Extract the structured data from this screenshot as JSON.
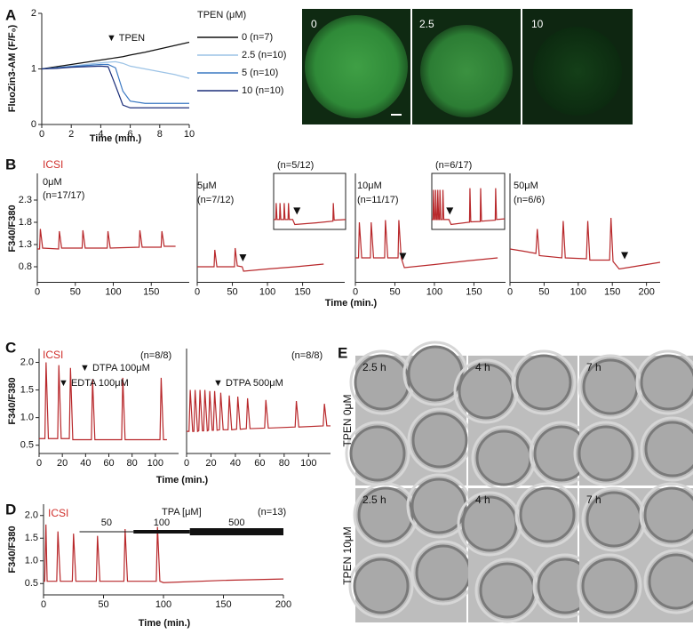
{
  "panel_letters": [
    "A",
    "B",
    "C",
    "D",
    "E"
  ],
  "panel_a_images": {
    "labels": [
      "0",
      "2.5",
      "10"
    ]
  },
  "panel_e": {
    "rows": [
      {
        "label": "TPEN 0μM",
        "times": [
          "2.5 h",
          "4 h",
          "7 h"
        ]
      },
      {
        "label": "TPEN 10μM",
        "times": [
          "2.5 h",
          "4 h",
          "7 h"
        ]
      }
    ]
  },
  "chart_data": [
    {
      "type": "line",
      "ylabel": "FluoZin3-AM (F/F₀)",
      "xlabel": "Time (min.)",
      "annotations": [
        "▼ TPEN"
      ],
      "legend_title": "TPEN (μM)",
      "x": [
        0,
        1,
        2,
        3,
        4,
        4.5,
        5,
        5.5,
        6,
        7,
        8,
        9,
        10
      ],
      "series": [
        {
          "name": "0 (n=7)",
          "color": "#111111",
          "values": [
            1.0,
            1.04,
            1.08,
            1.12,
            1.16,
            1.18,
            1.2,
            1.22,
            1.25,
            1.3,
            1.36,
            1.42,
            1.48
          ]
        },
        {
          "name": "2.5 (n=10)",
          "color": "#9cc3e6",
          "values": [
            1.0,
            1.02,
            1.05,
            1.08,
            1.11,
            1.12,
            1.13,
            1.1,
            1.05,
            1.0,
            0.95,
            0.9,
            0.83
          ]
        },
        {
          "name": "5 (n=10)",
          "color": "#3a78c2",
          "values": [
            1.0,
            1.02,
            1.04,
            1.06,
            1.08,
            1.08,
            1.02,
            0.6,
            0.42,
            0.38,
            0.38,
            0.38,
            0.38
          ]
        },
        {
          "name": "10 (n=10)",
          "color": "#1c2f7a",
          "values": [
            1.0,
            1.01,
            1.03,
            1.04,
            1.05,
            1.04,
            0.7,
            0.35,
            0.3,
            0.3,
            0.3,
            0.3,
            0.3
          ]
        }
      ],
      "xlim": [
        0,
        10
      ],
      "xticks": [
        0,
        2,
        4,
        6,
        8,
        10
      ],
      "ylim": [
        0,
        2
      ],
      "yticks": [
        0,
        1,
        2
      ]
    },
    {
      "type": "line",
      "label": "ICSI",
      "label_color": "#d0312d",
      "title": "0μM",
      "annotations": [
        "(n=17/17)"
      ],
      "ylabel": "F340/F380",
      "color": "#b8282b",
      "x": [
        0,
        3,
        4,
        7,
        28,
        29,
        32,
        59,
        60,
        63,
        92,
        93,
        96,
        134,
        135,
        138,
        163,
        164,
        167,
        182
      ],
      "values": [
        1.2,
        1.2,
        1.65,
        1.22,
        1.2,
        1.6,
        1.22,
        1.22,
        1.62,
        1.22,
        1.22,
        1.6,
        1.22,
        1.24,
        1.62,
        1.24,
        1.24,
        1.6,
        1.26,
        1.26
      ],
      "xlim": [
        0,
        200
      ],
      "xticks": [
        0,
        50,
        100,
        150
      ],
      "ylim": [
        0.45,
        2.9
      ],
      "yticks": [
        0.8,
        1.3,
        1.8,
        2.3
      ]
    },
    {
      "type": "line",
      "title": "5μM",
      "annotations": [
        "(n=7/12)"
      ],
      "xlabel": "Time (min.)",
      "color": "#b8282b",
      "x": [
        0,
        24,
        25,
        28,
        53,
        54,
        57,
        64,
        66,
        100,
        140,
        180
      ],
      "values": [
        0.8,
        0.8,
        1.18,
        0.8,
        0.8,
        1.22,
        0.82,
        0.8,
        0.7,
        0.75,
        0.8,
        0.86
      ],
      "markers": [
        {
          "x": 65,
          "y": 0.92
        }
      ],
      "xlim": [
        0,
        210
      ],
      "xticks": [
        0,
        50,
        100,
        150
      ],
      "ylim": [
        0.45,
        2.9
      ]
    },
    {
      "type": "line",
      "title": "10μM",
      "annotations": [
        "(n=11/17)"
      ],
      "color": "#b8282b",
      "x": [
        0,
        4,
        5,
        8,
        19,
        20,
        23,
        37,
        38,
        41,
        54,
        55,
        58,
        62,
        100,
        140,
        180
      ],
      "values": [
        1.0,
        1.0,
        1.8,
        1.0,
        1.0,
        1.8,
        1.0,
        1.0,
        1.85,
        1.0,
        1.0,
        1.85,
        1.0,
        0.78,
        0.85,
        0.93,
        1.0
      ],
      "markers": [
        {
          "x": 60,
          "y": 0.95
        }
      ],
      "xlim": [
        0,
        190
      ],
      "xticks": [
        0,
        50,
        100,
        150
      ],
      "ylim": [
        0.45,
        2.9
      ]
    },
    {
      "type": "line",
      "title": "50μM",
      "annotations": [
        "(n=6/6)"
      ],
      "color": "#b8282b",
      "x": [
        0,
        20,
        38,
        40,
        43,
        76,
        78,
        81,
        112,
        114,
        117,
        146,
        148,
        151,
        160,
        180,
        220
      ],
      "values": [
        1.2,
        1.15,
        1.1,
        1.65,
        1.05,
        1.0,
        1.83,
        1.0,
        0.98,
        1.83,
        0.95,
        0.95,
        1.9,
        0.92,
        0.75,
        0.8,
        0.9
      ],
      "markers": [
        {
          "x": 168,
          "y": 0.97
        }
      ],
      "xlim": [
        0,
        220
      ],
      "xticks": [
        0,
        50,
        100,
        150,
        200
      ],
      "ylim": [
        0.45,
        2.9
      ]
    },
    {
      "type": "line",
      "annotations": [
        "(n=5/12)"
      ],
      "color": "#b8282b",
      "x": [
        0,
        5,
        6,
        8,
        14,
        15,
        17,
        24,
        25,
        27,
        34,
        35,
        37,
        45,
        50,
        100,
        140,
        141,
        143,
        170
      ],
      "values": [
        0.8,
        0.8,
        1.3,
        0.8,
        0.8,
        1.3,
        0.8,
        0.8,
        1.3,
        0.8,
        0.8,
        1.3,
        0.8,
        0.8,
        0.65,
        0.7,
        0.75,
        1.3,
        0.78,
        0.8
      ],
      "markers": [
        {
          "x": 55,
          "y": 0.95
        }
      ],
      "xlim": [
        0,
        170
      ],
      "ylim": [
        0.5,
        2.2
      ]
    },
    {
      "type": "line",
      "annotations": [
        "(n=6/17)"
      ],
      "color": "#b8282b",
      "x": [
        0,
        3,
        4,
        6,
        8,
        9,
        11,
        13,
        14,
        16,
        18,
        19,
        21,
        25,
        26,
        28,
        40,
        45,
        88,
        89,
        91,
        113,
        114,
        116,
        148,
        149,
        151,
        170
      ],
      "values": [
        0.8,
        0.8,
        1.7,
        0.8,
        0.8,
        1.7,
        0.8,
        0.8,
        1.7,
        0.8,
        0.8,
        1.7,
        0.8,
        0.8,
        1.7,
        0.8,
        0.8,
        0.65,
        0.72,
        1.75,
        0.73,
        0.74,
        1.75,
        0.75,
        0.78,
        1.75,
        0.8,
        0.82
      ],
      "markers": [
        {
          "x": 42,
          "y": 0.95
        }
      ],
      "xlim": [
        0,
        170
      ],
      "ylim": [
        0.5,
        2.2
      ]
    },
    {
      "type": "line",
      "label": "ICSI",
      "label_color": "#d0312d",
      "annotations": [
        "(n=8/8)",
        "▼ DTPA 100μM",
        "▼ EDTA 100μM"
      ],
      "ylabel": "F340/F380",
      "xlabel": "Time (min.)",
      "color": "#b8282b",
      "x": [
        0,
        5,
        6,
        8,
        16,
        17,
        19,
        26,
        27,
        29,
        45,
        46,
        48,
        71,
        72,
        74,
        104,
        105,
        107,
        110
      ],
      "values": [
        0.62,
        0.62,
        2.0,
        0.62,
        0.62,
        1.95,
        0.62,
        0.62,
        1.9,
        0.6,
        0.6,
        1.7,
        0.6,
        0.6,
        1.72,
        0.6,
        0.6,
        1.72,
        0.6,
        0.6
      ],
      "xlim": [
        0,
        120
      ],
      "xticks": [
        0,
        20,
        40,
        60,
        80,
        100
      ],
      "ylim": [
        0.35,
        2.25
      ],
      "yticks": [
        0.5,
        {
          "value": 1,
          "label": "1.0"
        },
        1.5,
        {
          "value": 2,
          "label": "2.0"
        }
      ]
    },
    {
      "type": "line",
      "annotations": [
        "(n=8/8)",
        "▼ DTPA 500μM"
      ],
      "color": "#b8282b",
      "x": [
        0,
        2,
        3,
        5,
        6,
        7,
        9,
        10,
        11,
        13,
        14,
        15,
        17,
        18,
        19,
        21,
        22,
        23,
        25,
        27,
        28,
        30,
        34,
        35,
        37,
        41,
        42,
        44,
        49,
        50,
        52,
        64,
        65,
        67,
        89,
        90,
        92,
        112,
        113,
        115,
        118
      ],
      "values": [
        0.75,
        0.75,
        1.5,
        0.75,
        0.75,
        1.5,
        0.75,
        0.76,
        1.5,
        0.76,
        0.76,
        1.5,
        0.76,
        0.77,
        1.48,
        0.77,
        0.77,
        1.48,
        0.77,
        0.78,
        1.45,
        0.78,
        0.78,
        1.4,
        0.78,
        0.79,
        1.38,
        0.79,
        0.8,
        1.35,
        0.8,
        0.81,
        1.32,
        0.81,
        0.83,
        1.3,
        0.83,
        0.85,
        1.25,
        0.85,
        0.85
      ],
      "xlim": [
        0,
        118
      ],
      "xticks": [
        0,
        20,
        40,
        60,
        80,
        100
      ],
      "ylim": [
        0.35,
        2.25
      ]
    },
    {
      "type": "line",
      "label": "ICSI",
      "label_color": "#d0312d",
      "annotations": [
        "TPA [μM]",
        "(n=13)"
      ],
      "ylabel": "F340/F380",
      "xlabel": "Time (min.)",
      "color": "#b8282b",
      "x": [
        0,
        1,
        2,
        3,
        11,
        12,
        14,
        24,
        25,
        27,
        44,
        45,
        47,
        67,
        68,
        70,
        94,
        95,
        97,
        100,
        150,
        200
      ],
      "values": [
        0.55,
        0.55,
        1.8,
        0.55,
        0.55,
        1.65,
        0.55,
        0.55,
        1.6,
        0.55,
        0.55,
        1.55,
        0.55,
        0.55,
        1.7,
        0.55,
        0.55,
        1.75,
        0.55,
        0.52,
        0.57,
        0.6
      ],
      "bars": [
        {
          "label": "50",
          "start": 30,
          "end": 75
        },
        {
          "label": "100",
          "start": 75,
          "end": 122
        },
        {
          "label": "500",
          "start": 122,
          "end": 200
        }
      ],
      "xlim": [
        0,
        200
      ],
      "xticks": [
        0,
        50,
        100,
        150,
        200
      ],
      "ylim": [
        0.25,
        2.25
      ],
      "yticks": [
        0.5,
        {
          "value": 1,
          "label": "1.0"
        },
        1.5,
        {
          "value": 2,
          "label": "2.0"
        }
      ]
    }
  ]
}
